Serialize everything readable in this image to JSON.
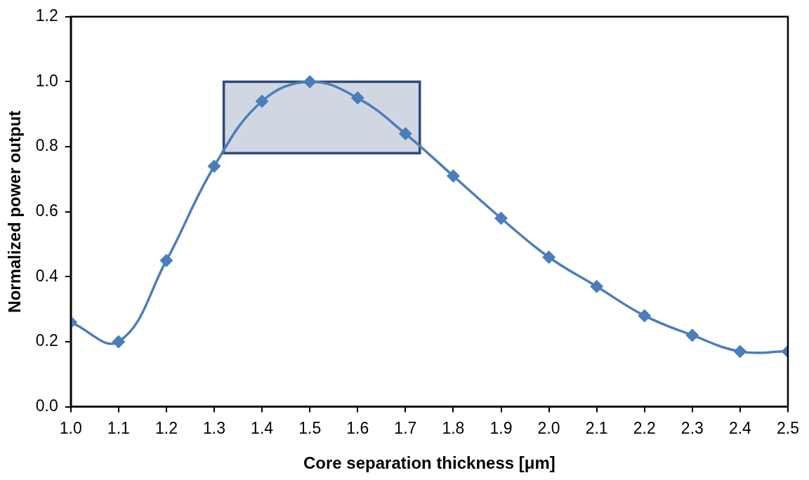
{
  "chart_data": {
    "type": "line",
    "xlabel": "Core separation thickness [μm]",
    "ylabel": "Normalized power output",
    "x": [
      1.0,
      1.1,
      1.2,
      1.3,
      1.4,
      1.5,
      1.6,
      1.7,
      1.8,
      1.9,
      2.0,
      2.1,
      2.2,
      2.3,
      2.4,
      2.5
    ],
    "series": [
      {
        "color": "#4a7ebb",
        "values": [
          0.26,
          0.2,
          0.45,
          0.74,
          0.94,
          1.0,
          0.95,
          0.84,
          0.71,
          0.58,
          0.46,
          0.37,
          0.28,
          0.22,
          0.17,
          0.17
        ]
      }
    ],
    "xlim": [
      1.0,
      2.5
    ],
    "xticks": [
      {
        "value": 1,
        "label": "1.0"
      },
      1.1,
      1.2,
      1.3,
      1.4,
      1.5,
      1.6,
      1.7,
      1.8,
      1.9,
      {
        "value": 2,
        "label": "2.0"
      },
      2.1,
      2.2,
      2.3,
      2.4,
      2.5
    ],
    "ylim": [
      0,
      1.2
    ],
    "yticks": [
      {
        "value": 0,
        "label": "0.0"
      },
      0.2,
      0.4,
      0.6,
      0.8,
      {
        "value": 1,
        "label": "1.0"
      },
      1.2
    ],
    "bands": [
      {
        "axis": "x",
        "from": 1.32,
        "to": 1.73,
        "color": "#2e4a7a"
      }
    ],
    "marker": "diamond",
    "legend": false
  }
}
